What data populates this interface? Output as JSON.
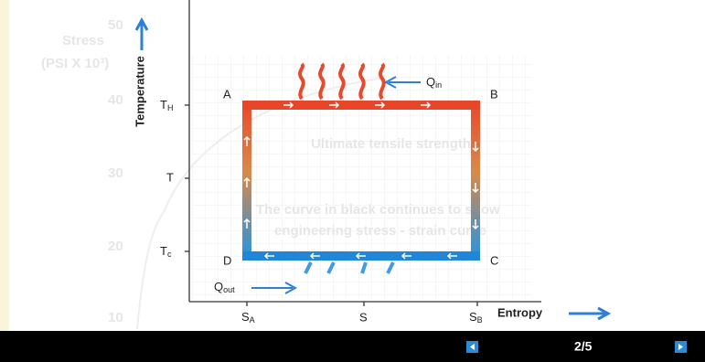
{
  "diagram": {
    "axis_labels": {
      "y": "Temperature",
      "x": "Entropy"
    },
    "y_ticks": [
      {
        "main": "T",
        "sub": "H"
      },
      {
        "main": "T"
      },
      {
        "main": "T",
        "sub": "c"
      }
    ],
    "x_ticks": [
      {
        "main": "S",
        "sub": "A"
      },
      {
        "main": "S"
      },
      {
        "main": "S",
        "sub": "B"
      }
    ],
    "corners": [
      "A",
      "B",
      "C",
      "D"
    ],
    "heat_in": {
      "main": "Q",
      "sub": "in"
    },
    "heat_out": {
      "main": "Q",
      "sub": "out"
    },
    "background": {
      "ticks": [
        "50",
        "40",
        "30",
        "20",
        "10"
      ],
      "axis_title": "Stress",
      "axis_unit": "(PSI X 10³)",
      "notes": [
        "Ultimate tensile strength",
        "The curve in black continues to show",
        "engineering stress - strain curve"
      ]
    }
  },
  "navigation": {
    "counter": "2/5"
  }
}
